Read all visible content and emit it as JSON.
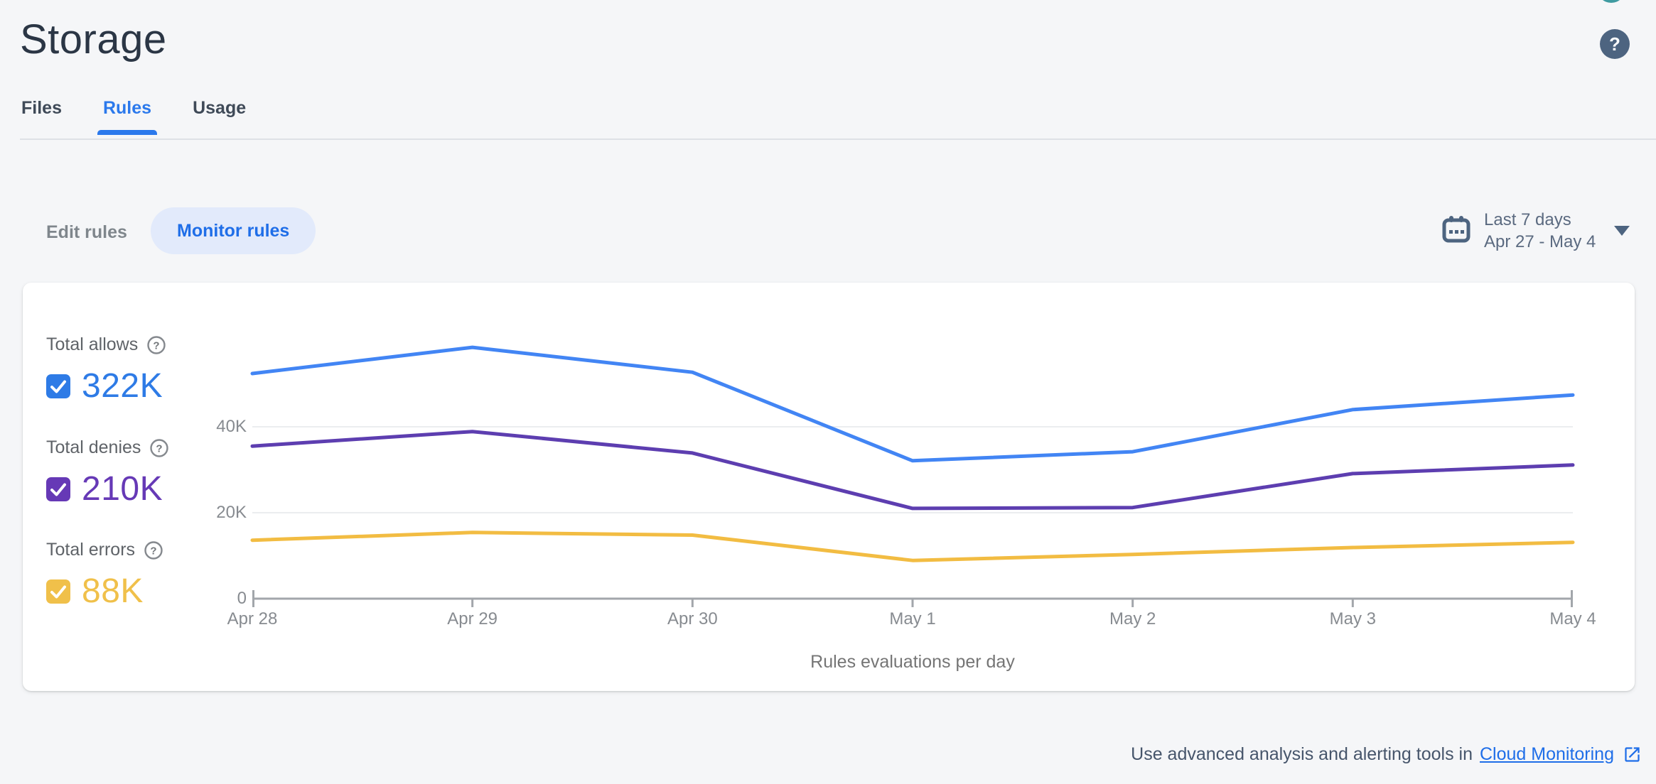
{
  "header": {
    "title": "Storage"
  },
  "icons": {
    "help_glyph": "?"
  },
  "tabs": [
    {
      "label": "Files",
      "active": false
    },
    {
      "label": "Rules",
      "active": true
    },
    {
      "label": "Usage",
      "active": false
    }
  ],
  "toolbar": {
    "edit_rules_label": "Edit rules",
    "monitor_rules_label": "Monitor rules",
    "date_range": {
      "preset": "Last 7 days",
      "range": "Apr 27 - May 4"
    }
  },
  "stats": [
    {
      "label": "Total allows",
      "value": "322K",
      "color": "#2e7be6"
    },
    {
      "label": "Total denies",
      "value": "210K",
      "color": "#6639b6"
    },
    {
      "label": "Total errors",
      "value": "88K",
      "color": "#f0c04a"
    }
  ],
  "chart_data": {
    "type": "line",
    "title": "Rules evaluations per day",
    "x": [
      "Apr 28",
      "Apr 29",
      "Apr 30",
      "May 1",
      "May 2",
      "May 3",
      "May 4"
    ],
    "series": [
      {
        "name": "Total allows",
        "color": "#4285f4",
        "values": [
          52400,
          58500,
          52700,
          32100,
          34200,
          44000,
          47400
        ]
      },
      {
        "name": "Total denies",
        "color": "#5d3eb0",
        "values": [
          35500,
          38900,
          33900,
          21000,
          21200,
          29100,
          31100
        ]
      },
      {
        "name": "Total errors",
        "color": "#f2bc42",
        "values": [
          13600,
          15400,
          14800,
          8900,
          10300,
          11900,
          13100
        ]
      }
    ],
    "ylim": [
      0,
      60000
    ],
    "yticks": [
      {
        "value": 0,
        "label": "0"
      },
      {
        "value": 20000,
        "label": "20K"
      },
      {
        "value": 40000,
        "label": "40K"
      }
    ],
    "grid": "horizontal",
    "legend_position": "left"
  },
  "footer": {
    "text": "Use advanced analysis and alerting tools in",
    "link_label": "Cloud Monitoring"
  }
}
